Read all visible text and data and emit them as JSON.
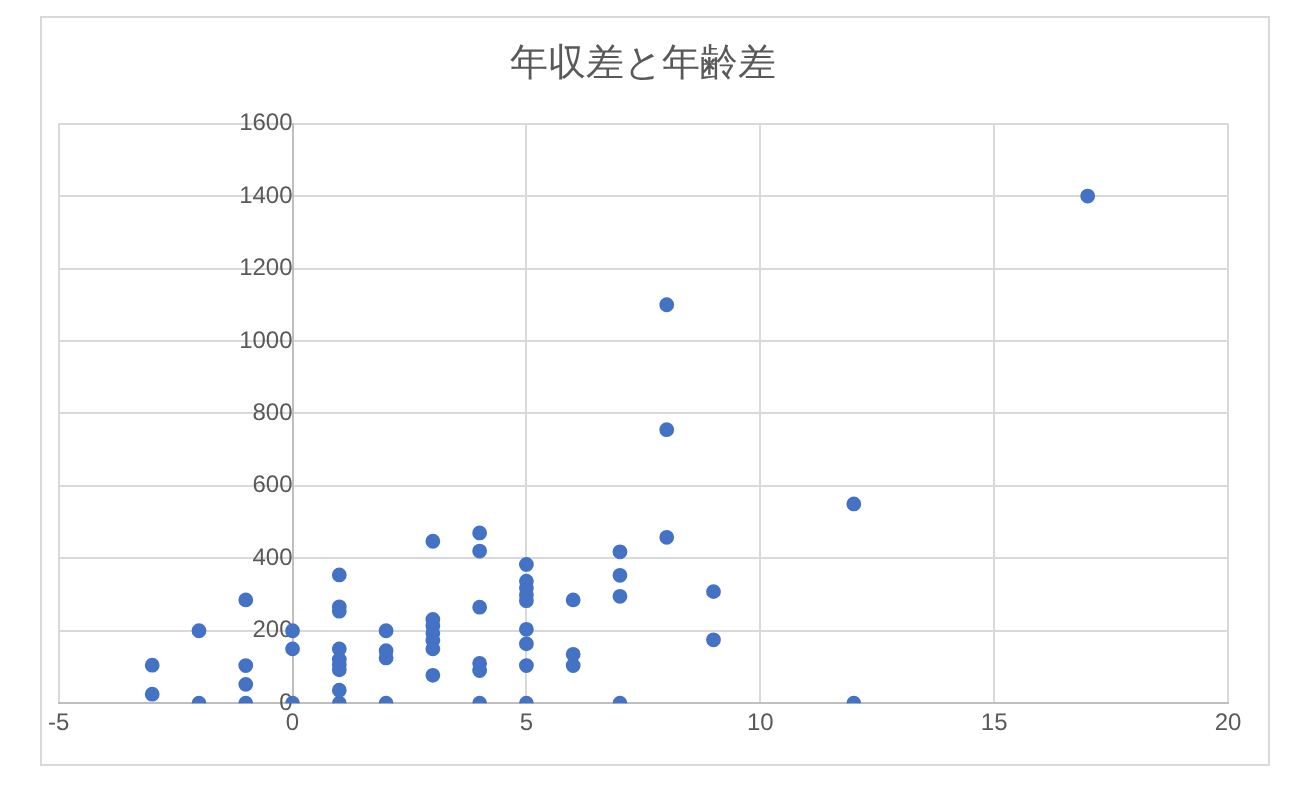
{
  "chart_data": {
    "type": "scatter",
    "title": "年収差と年齢差",
    "x": [
      -3,
      -3,
      -2,
      -2,
      -1,
      -1,
      -1,
      -1,
      0,
      0,
      0,
      1,
      1,
      1,
      1,
      1,
      1,
      1,
      1,
      1,
      2,
      2,
      2,
      2,
      3,
      3,
      3,
      3,
      3,
      3,
      3,
      4,
      4,
      4,
      4,
      4,
      4,
      5,
      5,
      5,
      5,
      5,
      5,
      5,
      5,
      5,
      6,
      6,
      6,
      7,
      7,
      7,
      7,
      8,
      8,
      8,
      9,
      9,
      12,
      12,
      17
    ],
    "values": [
      105,
      25,
      200,
      0,
      285,
      104,
      52,
      0,
      200,
      150,
      0,
      354,
      266,
      254,
      150,
      121,
      106,
      92,
      36,
      0,
      200,
      145,
      125,
      0,
      447,
      231,
      214,
      193,
      173,
      150,
      77,
      470,
      420,
      265,
      110,
      90,
      0,
      383,
      337,
      318,
      299,
      283,
      204,
      164,
      104,
      0,
      285,
      135,
      104,
      418,
      353,
      295,
      0,
      1100,
      755,
      458,
      308,
      175,
      550,
      0,
      1400
    ],
    "color": "#4472c4",
    "marker": "circle",
    "xlim": [
      -5,
      20
    ],
    "xticks": [
      -5,
      0,
      5,
      10,
      15,
      20
    ],
    "ylim": [
      0,
      1600
    ],
    "yticks": [
      0,
      200,
      400,
      600,
      800,
      1000,
      1200,
      1400,
      1600
    ],
    "grid": true,
    "legend": false
  }
}
